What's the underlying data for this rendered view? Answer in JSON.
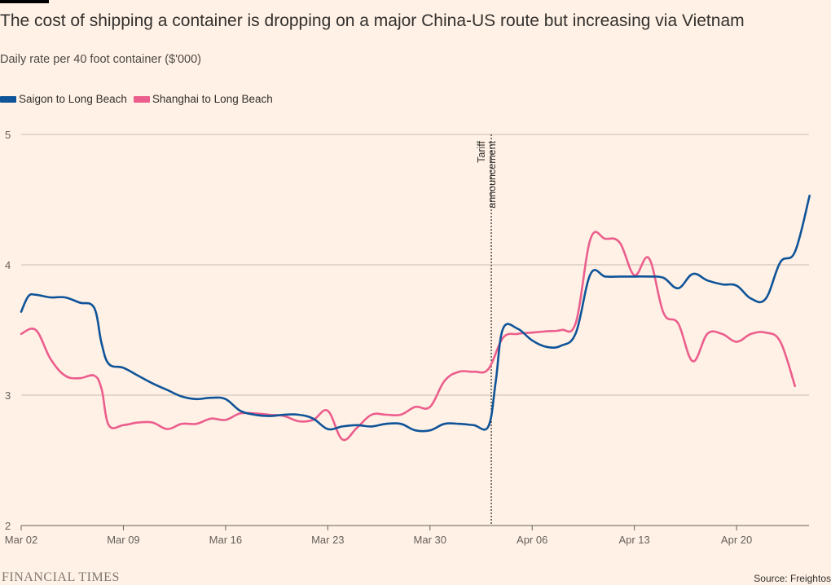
{
  "title": "The cost of shipping a container is dropping on a major China-US route but increasing via Vietnam",
  "subtitle": "Daily rate per 40 foot container ($'000)",
  "footer": {
    "brand": "FINANCIAL TIMES",
    "source": "Source: Freightos"
  },
  "colors": {
    "background": "#fff1e5",
    "saigon": "#0f5499",
    "shanghai": "#eb5e8d",
    "grid": "#c9bcb0"
  },
  "chart_data": {
    "type": "line",
    "title": "The cost of shipping a container is dropping on a major China-US route but increasing via Vietnam",
    "ylabel": "Daily rate per 40 foot container ($'000)",
    "xlabel": "",
    "x_tick_labels": [
      "Mar 02",
      "Mar 09",
      "Mar 16",
      "Mar 23",
      "Mar 30",
      "Apr 06",
      "Apr 13",
      "Apr 20"
    ],
    "y_ticks": [
      2,
      3,
      4,
      5
    ],
    "ylim": [
      2,
      5
    ],
    "grid": true,
    "legend_position": "top-left",
    "annotation": {
      "label_lines": [
        "Tariff",
        "announcement"
      ],
      "day": 32.2
    },
    "series": [
      {
        "name": "Saigon to Long Beach",
        "color": "#0f5499",
        "points": [
          [
            0,
            3.64
          ],
          [
            0.5,
            3.76
          ],
          [
            1,
            3.77
          ],
          [
            2,
            3.75
          ],
          [
            3,
            3.75
          ],
          [
            4,
            3.71
          ],
          [
            5,
            3.67
          ],
          [
            5.5,
            3.4
          ],
          [
            6,
            3.24
          ],
          [
            7,
            3.21
          ],
          [
            8,
            3.15
          ],
          [
            9,
            3.09
          ],
          [
            10,
            3.04
          ],
          [
            11,
            2.99
          ],
          [
            12,
            2.97
          ],
          [
            13,
            2.98
          ],
          [
            14,
            2.97
          ],
          [
            15,
            2.88
          ],
          [
            16,
            2.85
          ],
          [
            17,
            2.84
          ],
          [
            18,
            2.85
          ],
          [
            19,
            2.85
          ],
          [
            20,
            2.82
          ],
          [
            21,
            2.74
          ],
          [
            22,
            2.76
          ],
          [
            23,
            2.77
          ],
          [
            24,
            2.76
          ],
          [
            25,
            2.78
          ],
          [
            26,
            2.78
          ],
          [
            27,
            2.73
          ],
          [
            28,
            2.73
          ],
          [
            29,
            2.78
          ],
          [
            30,
            2.78
          ],
          [
            31,
            2.77
          ],
          [
            32,
            2.76
          ],
          [
            32.5,
            3.1
          ],
          [
            33,
            3.51
          ],
          [
            34,
            3.51
          ],
          [
            35,
            3.42
          ],
          [
            36,
            3.37
          ],
          [
            37,
            3.38
          ],
          [
            38,
            3.48
          ],
          [
            39,
            3.93
          ],
          [
            40,
            3.91
          ],
          [
            41,
            3.91
          ],
          [
            42,
            3.91
          ],
          [
            43,
            3.91
          ],
          [
            44,
            3.9
          ],
          [
            45,
            3.82
          ],
          [
            46,
            3.93
          ],
          [
            47,
            3.88
          ],
          [
            48,
            3.85
          ],
          [
            49,
            3.84
          ],
          [
            50,
            3.74
          ],
          [
            51,
            3.74
          ],
          [
            52,
            4.02
          ],
          [
            53,
            4.1
          ],
          [
            54,
            4.53
          ]
        ]
      },
      {
        "name": "Shanghai to Long Beach",
        "color": "#eb5e8d",
        "points": [
          [
            0,
            3.47
          ],
          [
            1,
            3.5
          ],
          [
            2,
            3.28
          ],
          [
            3,
            3.15
          ],
          [
            4,
            3.13
          ],
          [
            5,
            3.15
          ],
          [
            5.5,
            3.05
          ],
          [
            6,
            2.77
          ],
          [
            7,
            2.77
          ],
          [
            8,
            2.79
          ],
          [
            9,
            2.79
          ],
          [
            10,
            2.74
          ],
          [
            11,
            2.78
          ],
          [
            12,
            2.78
          ],
          [
            13,
            2.82
          ],
          [
            14,
            2.81
          ],
          [
            15,
            2.86
          ],
          [
            16,
            2.86
          ],
          [
            17,
            2.85
          ],
          [
            18,
            2.84
          ],
          [
            19,
            2.8
          ],
          [
            20,
            2.81
          ],
          [
            21,
            2.88
          ],
          [
            22,
            2.66
          ],
          [
            23,
            2.75
          ],
          [
            24,
            2.85
          ],
          [
            25,
            2.85
          ],
          [
            26,
            2.85
          ],
          [
            27,
            2.91
          ],
          [
            28,
            2.91
          ],
          [
            29,
            3.11
          ],
          [
            30,
            3.18
          ],
          [
            31,
            3.18
          ],
          [
            32,
            3.2
          ],
          [
            33,
            3.44
          ],
          [
            34,
            3.47
          ],
          [
            35,
            3.48
          ],
          [
            36,
            3.49
          ],
          [
            37,
            3.5
          ],
          [
            38,
            3.56
          ],
          [
            39,
            4.2
          ],
          [
            40,
            4.2
          ],
          [
            41,
            4.17
          ],
          [
            42,
            3.92
          ],
          [
            43,
            4.05
          ],
          [
            44,
            3.63
          ],
          [
            45,
            3.55
          ],
          [
            46,
            3.26
          ],
          [
            47,
            3.47
          ],
          [
            48,
            3.47
          ],
          [
            49,
            3.41
          ],
          [
            50,
            3.47
          ],
          [
            51,
            3.48
          ],
          [
            52,
            3.41
          ],
          [
            53,
            3.07
          ]
        ]
      }
    ]
  }
}
